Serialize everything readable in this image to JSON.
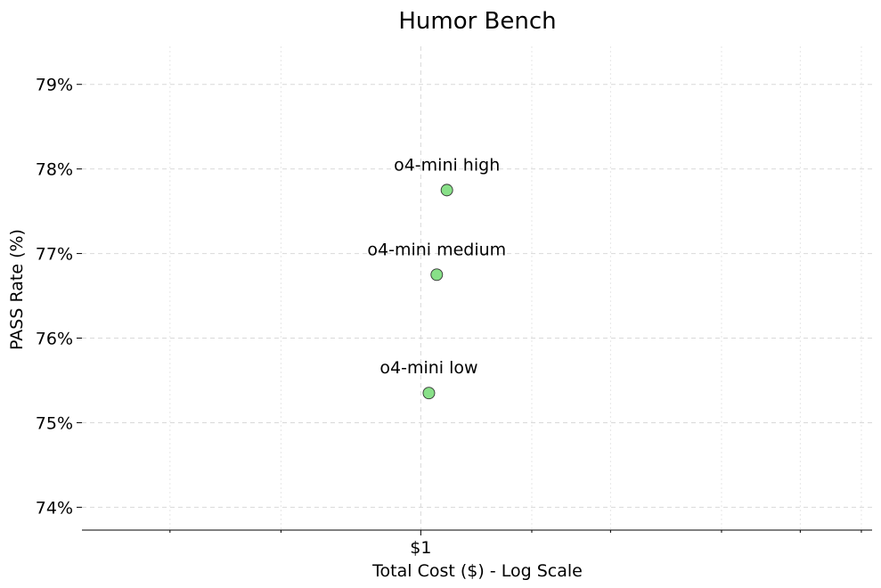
{
  "chart_data": {
    "type": "scatter",
    "title": "Humor Bench",
    "xlabel": "Total Cost ($) - Log Scale",
    "ylabel": "PASS Rate (%)",
    "x_scale": "log",
    "xlim": [
      0.29,
      5.2
    ],
    "ylim": [
      73.73,
      79.45
    ],
    "x_ticks": [
      {
        "value": 1,
        "label": "$1"
      }
    ],
    "x_minor_ticks": [
      0.4,
      0.6,
      1.5,
      2,
      3,
      4,
      5
    ],
    "y_ticks": [
      {
        "value": 74,
        "label": "74%"
      },
      {
        "value": 75,
        "label": "75%"
      },
      {
        "value": 76,
        "label": "76%"
      },
      {
        "value": 77,
        "label": "77%"
      },
      {
        "value": 78,
        "label": "78%"
      },
      {
        "value": 79,
        "label": "79%"
      }
    ],
    "grid": true,
    "marker_color": "#88e088",
    "marker_edge_color": "#333333",
    "points": [
      {
        "label": "o4-mini high",
        "x": 1.1,
        "y": 77.75
      },
      {
        "label": "o4-mini medium",
        "x": 1.06,
        "y": 76.75
      },
      {
        "label": "o4-mini low",
        "x": 1.03,
        "y": 75.35
      }
    ]
  }
}
